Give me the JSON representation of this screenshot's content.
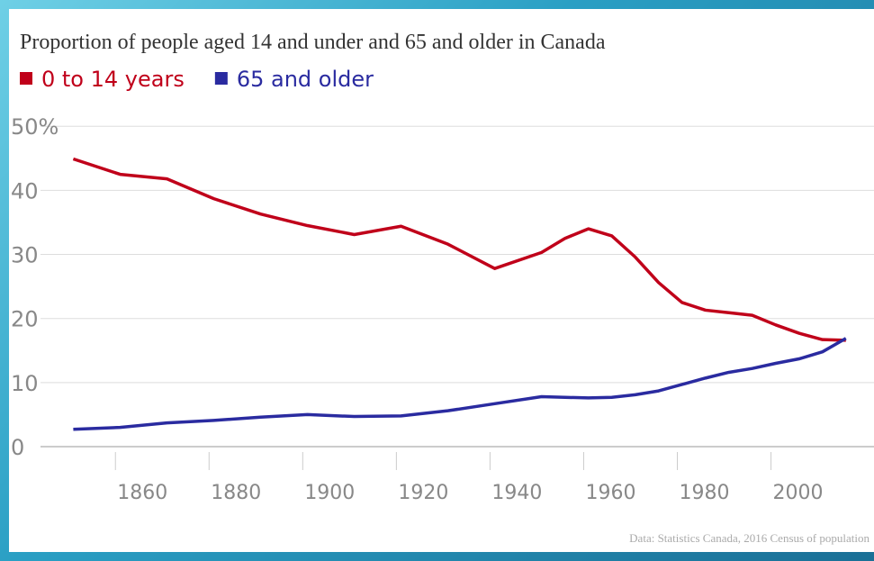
{
  "chart_data": {
    "type": "line",
    "title": "Proportion of people aged 14 and under and 65 and older in Canada",
    "source": "Data: Statistics Canada, 2016 Census of population",
    "x": [
      1851,
      1861,
      1871,
      1881,
      1891,
      1901,
      1911,
      1921,
      1931,
      1941,
      1951,
      1956,
      1961,
      1966,
      1971,
      1976,
      1981,
      1986,
      1991,
      1996,
      2001,
      2006,
      2011,
      2016
    ],
    "series": [
      {
        "name": "0 to 14 years",
        "color": "#c0001a",
        "values": [
          44.9,
          42.5,
          41.8,
          38.7,
          36.3,
          34.5,
          33.1,
          34.4,
          31.6,
          27.8,
          30.3,
          32.5,
          34.0,
          32.9,
          29.6,
          25.6,
          22.5,
          21.3,
          20.9,
          20.5,
          19.0,
          17.7,
          16.7,
          16.6
        ]
      },
      {
        "name": "65 and older",
        "color": "#2a2ba0",
        "values": [
          2.7,
          3.0,
          3.7,
          4.1,
          4.6,
          5.0,
          4.7,
          4.8,
          5.6,
          6.7,
          7.8,
          7.7,
          7.6,
          7.7,
          8.1,
          8.7,
          9.7,
          10.7,
          11.6,
          12.2,
          13.0,
          13.7,
          14.8,
          16.9
        ]
      }
    ],
    "xlim": [
      1844,
      2022
    ],
    "xticks": [
      1860,
      1880,
      1900,
      1920,
      1940,
      1960,
      1980,
      2000
    ],
    "ylim": [
      0,
      52
    ],
    "yticks": [
      0,
      10,
      20,
      30,
      {
        "value": 40,
        "label": "40"
      },
      {
        "value": 50,
        "label": "50%"
      }
    ],
    "grid": true,
    "legend": "top-left"
  }
}
